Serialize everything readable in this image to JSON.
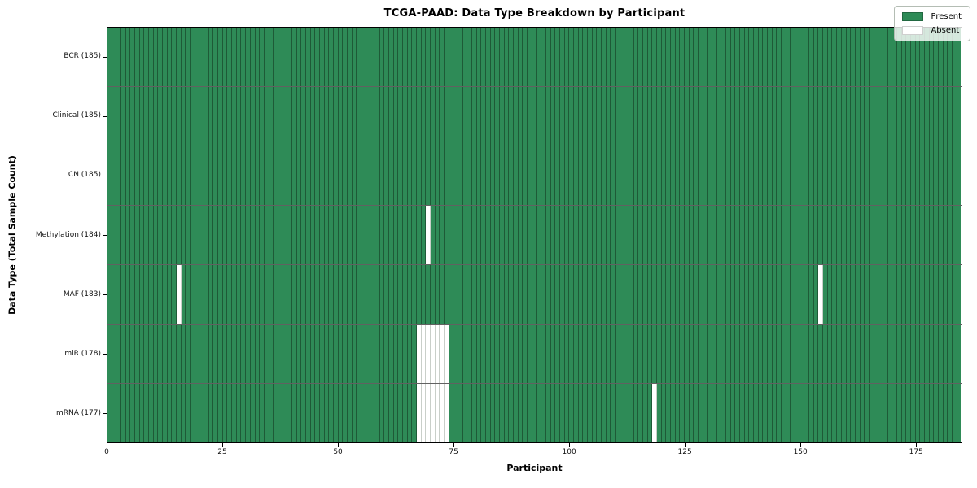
{
  "colors": {
    "present": "#2e8b57",
    "absent": "#ffffff"
  },
  "chart_data": {
    "type": "heatmap",
    "title": "TCGA-PAAD: Data Type Breakdown by Participant",
    "xlabel": "Participant",
    "ylabel": "Data Type (Total Sample Count)",
    "x_range": [
      0,
      185
    ],
    "x_ticks": [
      0,
      25,
      50,
      75,
      100,
      125,
      150,
      175
    ],
    "n_participants": 185,
    "grid": "per-participant cell edges",
    "legend_position": "upper right",
    "legend": {
      "present": "Present",
      "absent": "Absent"
    },
    "rows": [
      {
        "name": "BCR",
        "label": "BCR (185)",
        "present_count": 185,
        "absent_participants": []
      },
      {
        "name": "Clinical",
        "label": "Clinical (185)",
        "present_count": 185,
        "absent_participants": []
      },
      {
        "name": "CN",
        "label": "CN (185)",
        "present_count": 185,
        "absent_participants": []
      },
      {
        "name": "Methylation",
        "label": "Methylation (184)",
        "present_count": 184,
        "absent_participants": [
          69
        ]
      },
      {
        "name": "MAF",
        "label": "MAF (183)",
        "present_count": 183,
        "absent_participants": [
          15,
          154
        ]
      },
      {
        "name": "miR",
        "label": "miR (178)",
        "present_count": 178,
        "absent_participants": [
          67,
          68,
          69,
          70,
          71,
          72,
          73
        ]
      },
      {
        "name": "mRNA",
        "label": "mRNA (177)",
        "present_count": 177,
        "absent_participants": [
          67,
          68,
          69,
          70,
          71,
          72,
          73,
          118
        ]
      }
    ]
  }
}
